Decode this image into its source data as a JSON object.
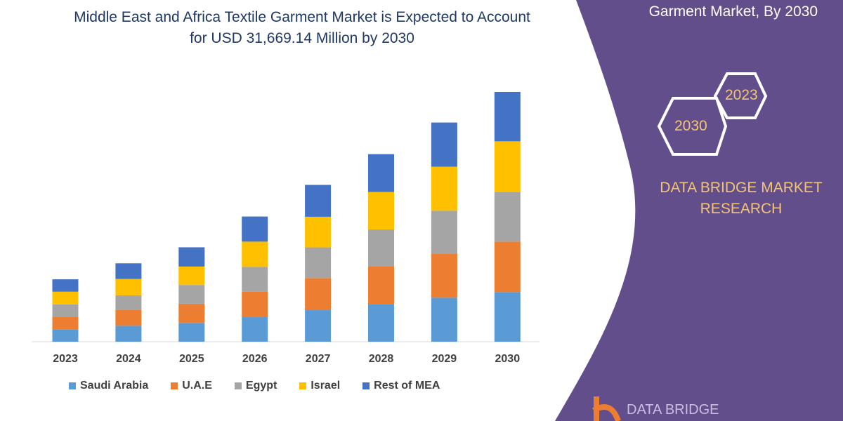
{
  "title_line1": "Middle East and Africa Textile Garment Market is Expected to Account",
  "title_line2": "for USD 31,669.14 Million by 2030",
  "panel": {
    "heading": "Garment Market, By 2030",
    "hex_years": [
      "2023",
      "2030"
    ],
    "brand_line1": "DATA BRIDGE MARKET",
    "brand_line2": "RESEARCH",
    "logo_text": "DATA BRIDGE",
    "panel_color": "#634e8c"
  },
  "chart_data": {
    "type": "bar",
    "stacked": true,
    "categories": [
      "2023",
      "2024",
      "2025",
      "2026",
      "2027",
      "2028",
      "2029",
      "2030"
    ],
    "unit": "USD Million (approximate)",
    "series": [
      {
        "name": "Saudi Arabia",
        "color": "#5b9bd5",
        "values": [
          1570,
          2020,
          2380,
          3110,
          4000,
          4750,
          5580,
          6290
        ]
      },
      {
        "name": "U.A.E",
        "color": "#ed7d31",
        "values": [
          1600,
          2050,
          2430,
          3240,
          4070,
          4830,
          5540,
          6400
        ]
      },
      {
        "name": "Egypt",
        "color": "#a5a5a5",
        "values": [
          1570,
          1810,
          2380,
          3140,
          3890,
          4650,
          5490,
          6290
        ]
      },
      {
        "name": "Israel",
        "color": "#ffc000",
        "values": [
          1600,
          2080,
          2340,
          3200,
          3880,
          4750,
          5580,
          6430
        ]
      },
      {
        "name": "Rest of MEA",
        "color": "#4472c4",
        "values": [
          1570,
          1980,
          2440,
          3180,
          4040,
          4800,
          5600,
          6260
        ]
      }
    ],
    "y_axis_shown": false,
    "grid": false,
    "legend_position": "bottom"
  }
}
